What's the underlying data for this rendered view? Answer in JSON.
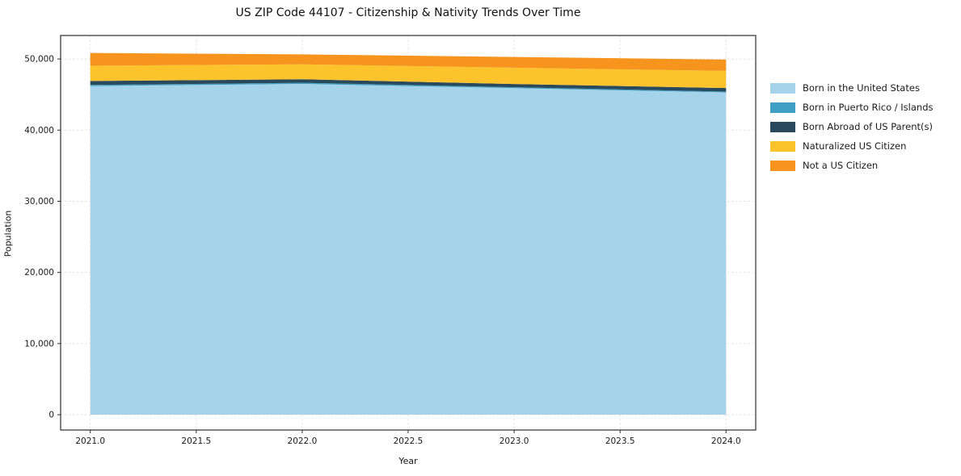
{
  "chart_data": {
    "type": "area",
    "stacked": true,
    "title": "US ZIP Code 44107 - Citizenship & Nativity Trends Over Time",
    "xlabel": "Year",
    "ylabel": "Population",
    "x": [
      2021,
      2022,
      2023,
      2024
    ],
    "series": [
      {
        "name": "Born in the United States",
        "color": "#a5d3e9",
        "values": [
          46200,
          46500,
          45900,
          45300
        ]
      },
      {
        "name": "Born in Puerto Rico / Islands",
        "color": "#3f9fc4",
        "values": [
          150,
          150,
          130,
          120
        ]
      },
      {
        "name": "Born Abroad of US Parent(s)",
        "color": "#29495c",
        "values": [
          550,
          500,
          450,
          500
        ]
      },
      {
        "name": "Naturalized US Citizen",
        "color": "#fdc32d",
        "values": [
          2150,
          2100,
          2300,
          2400
        ]
      },
      {
        "name": "Not a US Citizen",
        "color": "#f7941d",
        "values": [
          1800,
          1400,
          1500,
          1600
        ]
      }
    ],
    "xlim": [
      2020.86,
      2024.14
    ],
    "ylim": [
      -2150,
      53300
    ],
    "x_ticks": [
      {
        "v": 2021.0,
        "label": "2021.0"
      },
      {
        "v": 2021.5,
        "label": "2021.5"
      },
      {
        "v": 2022.0,
        "label": "2022.0"
      },
      {
        "v": 2022.5,
        "label": "2022.5"
      },
      {
        "v": 2023.0,
        "label": "2023.0"
      },
      {
        "v": 2023.5,
        "label": "2023.5"
      },
      {
        "v": 2024.0,
        "label": "2024.0"
      }
    ],
    "y_ticks": [
      {
        "v": 0,
        "label": "0"
      },
      {
        "v": 10000,
        "label": "10,000"
      },
      {
        "v": 20000,
        "label": "20,000"
      },
      {
        "v": 30000,
        "label": "30,000"
      },
      {
        "v": 40000,
        "label": "40,000"
      },
      {
        "v": 50000,
        "label": "50,000"
      }
    ],
    "grid": true,
    "legend_position": "right"
  }
}
